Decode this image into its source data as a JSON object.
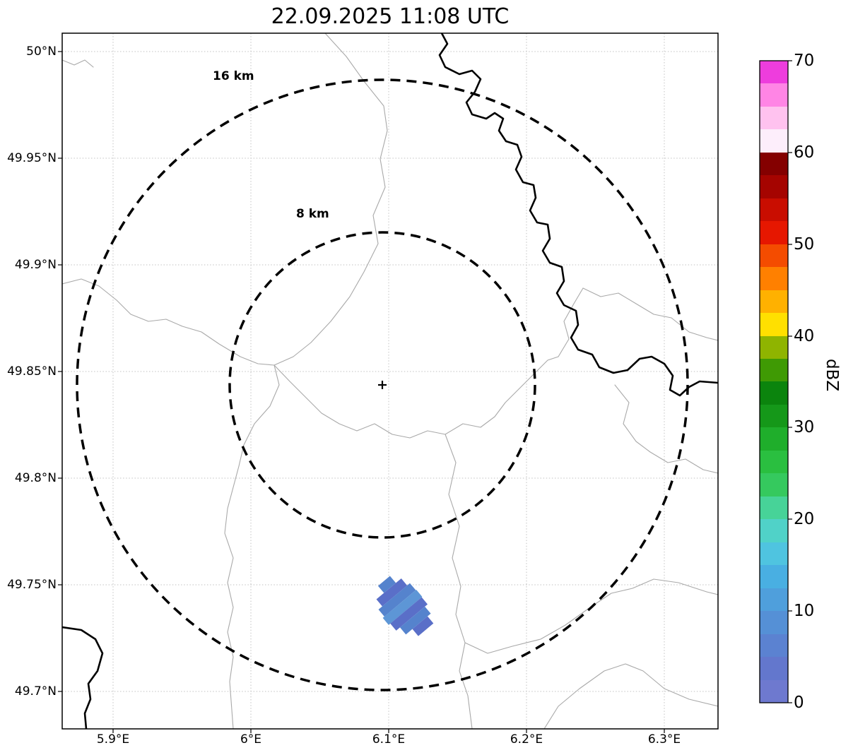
{
  "title": "22.09.2025 11:08 UTC",
  "rings": {
    "outer_label": "16 km",
    "inner_label": "8 km"
  },
  "axes": {
    "x_ticks": [
      "5.9°E",
      "6°E",
      "6.1°E",
      "6.2°E",
      "6.3°E"
    ],
    "y_ticks": [
      "50°N",
      "49.95°N",
      "49.9°N",
      "49.85°N",
      "49.8°N",
      "49.75°N",
      "49.7°N"
    ]
  },
  "colorbar": {
    "label": "dBZ",
    "ticks": [
      "0",
      "10",
      "20",
      "30",
      "40",
      "50",
      "60",
      "70"
    ],
    "colors_bottom_to_top": [
      "#6e79cf",
      "#6377cd",
      "#5b82d1",
      "#5590d6",
      "#4f9fdc",
      "#49afe2",
      "#4fc4e0",
      "#50d2c8",
      "#47d398",
      "#35c95e",
      "#2abf40",
      "#1fae2b",
      "#159819",
      "#0b840d",
      "#3f9a04",
      "#8fb400",
      "#ffe000",
      "#ffb100",
      "#ff8000",
      "#f44c00",
      "#e61700",
      "#c90d00",
      "#a50400",
      "#840000",
      "#fdeefb",
      "#ffc2ef",
      "#ff85e5",
      "#ee3ddd"
    ]
  },
  "colors": {
    "frame": "#000000",
    "grid": "#c2c2c2",
    "boundary": "#a9a9a9",
    "river": "#000000",
    "ring": "#000000",
    "echo_dark": "#5a6fc8",
    "echo_mid": "#5583cd",
    "echo_light": "#5d96d6"
  },
  "chart_data": {
    "type": "radar_reflectivity_map",
    "title": "22.09.2025 11:08 UTC",
    "colorbar_units": "dBZ",
    "colorbar_range": [
      0,
      70
    ],
    "colorbar_tick_values": [
      0,
      10,
      20,
      30,
      40,
      50,
      60,
      70
    ],
    "lon_ticks_deg_e": [
      5.9,
      6.0,
      6.1,
      6.2,
      6.3
    ],
    "lat_ticks_deg_n": [
      50.0,
      49.95,
      49.9,
      49.85,
      49.8,
      49.75,
      49.7
    ],
    "lon_range_deg_e": [
      5.86,
      6.34
    ],
    "lat_range_deg_n": [
      49.68,
      50.01
    ],
    "radar_center": {
      "lon_deg_e": 6.095,
      "lat_deg_n": 49.844
    },
    "range_rings_km": [
      8,
      16
    ],
    "echoes": [
      {
        "approx_lon_deg_e": 6.11,
        "approx_lat_deg_n": 49.735,
        "dbz_range_approx": [
          0,
          10
        ]
      }
    ]
  }
}
